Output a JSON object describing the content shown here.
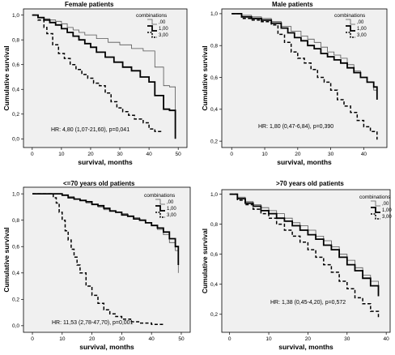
{
  "legend": {
    "title": "combinations",
    "entries": [
      {
        "label": ",00",
        "color": "#555555",
        "stroke_width": 0.8,
        "dash": "none"
      },
      {
        "label": "1,00",
        "color": "#000000",
        "stroke_width": 1.8,
        "dash": "none"
      },
      {
        "label": "3,00",
        "color": "#000000",
        "stroke_width": 1.5,
        "dash": "4,2.5"
      }
    ]
  },
  "chart_data": [
    {
      "type": "line",
      "title": "Female patients",
      "xlabel": "survival, months",
      "ylabel": "Cumulative survival",
      "xlim": [
        -3,
        53
      ],
      "ylim": [
        -0.07,
        1.05
      ],
      "xticks": [
        0,
        10,
        20,
        30,
        40,
        50
      ],
      "yticks": [
        0.0,
        0.2,
        0.4,
        0.6,
        0.8,
        1.0
      ],
      "ytick_labels": [
        "0,0",
        "0,2",
        "0,4",
        "0,6",
        "0,8",
        "1,0"
      ],
      "annotation": "HR: 4,80 (1,07-21,60), p=0,041",
      "series": [
        {
          "name": ",00",
          "x": [
            0,
            2,
            4,
            6,
            8,
            10,
            12,
            14,
            16,
            18,
            22,
            26,
            30,
            34,
            38,
            42,
            45,
            47,
            49
          ],
          "y": [
            1.0,
            0.98,
            0.97,
            0.96,
            0.95,
            0.93,
            0.9,
            0.88,
            0.86,
            0.84,
            0.81,
            0.78,
            0.76,
            0.73,
            0.71,
            0.58,
            0.43,
            0.42,
            0.05
          ]
        },
        {
          "name": "1,00",
          "x": [
            0,
            2,
            4,
            6,
            8,
            10,
            12,
            14,
            16,
            18,
            20,
            22,
            25,
            28,
            31,
            34,
            37,
            40,
            42,
            45,
            47,
            49
          ],
          "y": [
            1.0,
            0.98,
            0.96,
            0.94,
            0.92,
            0.89,
            0.86,
            0.83,
            0.8,
            0.77,
            0.74,
            0.7,
            0.66,
            0.62,
            0.58,
            0.55,
            0.5,
            0.46,
            0.35,
            0.24,
            0.23,
            0.0
          ]
        },
        {
          "name": "3,00",
          "x": [
            0,
            2,
            4,
            5,
            7,
            9,
            11,
            13,
            15,
            17,
            19,
            21,
            23,
            25,
            27,
            29,
            31,
            33,
            35,
            38,
            40,
            42,
            44
          ],
          "y": [
            1.0,
            0.96,
            0.9,
            0.85,
            0.76,
            0.69,
            0.65,
            0.6,
            0.56,
            0.52,
            0.49,
            0.45,
            0.43,
            0.37,
            0.3,
            0.25,
            0.22,
            0.19,
            0.16,
            0.13,
            0.08,
            0.06,
            0.05
          ]
        }
      ]
    },
    {
      "type": "line",
      "title": "Male patients",
      "xlabel": "survival, months",
      "ylabel": "Cumulative survival",
      "xlim": [
        -3,
        47
      ],
      "ylim": [
        0.16,
        1.03
      ],
      "xticks": [
        0,
        10,
        20,
        30,
        40
      ],
      "yticks": [
        0.2,
        0.4,
        0.6,
        0.8,
        1.0
      ],
      "ytick_labels": [
        "0,2",
        "0,4",
        "0,6",
        "0,8",
        "1,0"
      ],
      "annotation": "HR: 1,80 (0,47-6,84), p=0,390",
      "series": [
        {
          "name": ",00",
          "x": [
            0,
            3,
            6,
            9,
            12,
            15,
            18,
            21,
            23,
            25,
            27,
            29,
            31,
            33,
            35,
            37,
            39,
            41,
            43,
            44
          ],
          "y": [
            1.0,
            0.99,
            0.98,
            0.97,
            0.95,
            0.92,
            0.89,
            0.86,
            0.84,
            0.82,
            0.79,
            0.76,
            0.74,
            0.72,
            0.68,
            0.64,
            0.6,
            0.57,
            0.52,
            0.48
          ]
        },
        {
          "name": "1,00",
          "x": [
            0,
            3,
            6,
            9,
            12,
            15,
            17,
            19,
            21,
            23,
            25,
            27,
            29,
            31,
            33,
            35,
            37,
            39,
            41,
            43,
            44
          ],
          "y": [
            1.0,
            0.98,
            0.97,
            0.96,
            0.94,
            0.91,
            0.88,
            0.85,
            0.83,
            0.8,
            0.78,
            0.75,
            0.73,
            0.71,
            0.69,
            0.66,
            0.63,
            0.6,
            0.57,
            0.54,
            0.46
          ]
        },
        {
          "name": "3,00",
          "x": [
            0,
            3,
            6,
            9,
            12,
            14,
            16,
            18,
            20,
            22,
            24,
            26,
            28,
            30,
            32,
            34,
            36,
            38,
            40,
            42,
            44
          ],
          "y": [
            1.0,
            0.97,
            0.96,
            0.95,
            0.93,
            0.87,
            0.82,
            0.76,
            0.72,
            0.69,
            0.65,
            0.6,
            0.57,
            0.52,
            0.46,
            0.42,
            0.38,
            0.33,
            0.29,
            0.26,
            0.21
          ]
        }
      ]
    },
    {
      "type": "line",
      "title": "<=70 years old patients",
      "xlabel": "survival, months",
      "ylabel": "Cumulative survival",
      "xlim": [
        -3,
        53
      ],
      "ylim": [
        -0.05,
        1.05
      ],
      "xticks": [
        0,
        10,
        20,
        30,
        40,
        50
      ],
      "yticks": [
        0.0,
        0.2,
        0.4,
        0.6,
        0.8,
        1.0
      ],
      "ytick_labels": [
        "0,0",
        "0,2",
        "0,4",
        "0,6",
        "0,8",
        "1,0"
      ],
      "annotation": "HR: 11,53 (2,78-47,70), p=0,001",
      "series": [
        {
          "name": ",00",
          "x": [
            0,
            8,
            10,
            12,
            14,
            16,
            18,
            20,
            22,
            24,
            26,
            28,
            30,
            32,
            34,
            36,
            38,
            40,
            42,
            44,
            46,
            48,
            49
          ],
          "y": [
            1.0,
            1.0,
            0.99,
            0.98,
            0.96,
            0.95,
            0.93,
            0.92,
            0.9,
            0.88,
            0.87,
            0.86,
            0.85,
            0.83,
            0.82,
            0.8,
            0.78,
            0.76,
            0.73,
            0.69,
            0.63,
            0.57,
            0.4
          ]
        },
        {
          "name": "1,00",
          "x": [
            0,
            8,
            10,
            12,
            14,
            16,
            18,
            20,
            22,
            24,
            26,
            28,
            30,
            32,
            34,
            36,
            38,
            40,
            42,
            44,
            46,
            48,
            49
          ],
          "y": [
            1.0,
            1.0,
            0.99,
            0.97,
            0.96,
            0.95,
            0.94,
            0.92,
            0.91,
            0.89,
            0.87,
            0.86,
            0.84,
            0.83,
            0.81,
            0.8,
            0.78,
            0.76,
            0.74,
            0.71,
            0.66,
            0.6,
            0.46
          ]
        },
        {
          "name": "3,00",
          "x": [
            0,
            6,
            7,
            8,
            9,
            10,
            11,
            12,
            13,
            14,
            15,
            16,
            18,
            20,
            22,
            24,
            26,
            28,
            30,
            33,
            36,
            40,
            44
          ],
          "y": [
            1.0,
            1.0,
            0.97,
            0.93,
            0.86,
            0.8,
            0.72,
            0.65,
            0.58,
            0.52,
            0.46,
            0.4,
            0.3,
            0.23,
            0.17,
            0.12,
            0.09,
            0.07,
            0.05,
            0.03,
            0.02,
            0.01,
            0.0
          ]
        }
      ]
    },
    {
      "type": "line",
      "title": ">70 years old patients",
      "xlabel": "survival, months",
      "ylabel": "Cumulative survival",
      "xlim": [
        -2,
        41
      ],
      "ylim": [
        0.08,
        1.03
      ],
      "xticks": [
        0,
        10,
        20,
        30,
        40
      ],
      "yticks": [
        0.2,
        0.4,
        0.6,
        0.8,
        1.0
      ],
      "ytick_labels": [
        "0,2",
        "0,4",
        "0,6",
        "0,8",
        "1,0"
      ],
      "annotation": "HR: 1,38 (0,45-4,20), p=0,572",
      "series": [
        {
          "name": ",00",
          "x": [
            0,
            2,
            4,
            6,
            8,
            10,
            12,
            14,
            16,
            18,
            20,
            22,
            24,
            26,
            28,
            30,
            32,
            34,
            36,
            38
          ],
          "y": [
            1.0,
            0.98,
            0.95,
            0.93,
            0.91,
            0.89,
            0.87,
            0.84,
            0.81,
            0.79,
            0.76,
            0.72,
            0.69,
            0.65,
            0.6,
            0.56,
            0.51,
            0.46,
            0.42,
            0.35
          ]
        },
        {
          "name": "1,00",
          "x": [
            0,
            2,
            4,
            6,
            8,
            10,
            12,
            14,
            16,
            18,
            20,
            22,
            24,
            26,
            28,
            30,
            32,
            34,
            36,
            38
          ],
          "y": [
            1.0,
            0.97,
            0.94,
            0.92,
            0.89,
            0.87,
            0.84,
            0.82,
            0.79,
            0.76,
            0.73,
            0.7,
            0.66,
            0.63,
            0.58,
            0.53,
            0.49,
            0.44,
            0.39,
            0.32
          ]
        },
        {
          "name": "3,00",
          "x": [
            0,
            2,
            4,
            6,
            8,
            10,
            12,
            14,
            16,
            18,
            20,
            22,
            24,
            26,
            28,
            30,
            32,
            34,
            36,
            38
          ],
          "y": [
            1.0,
            0.96,
            0.93,
            0.9,
            0.87,
            0.84,
            0.8,
            0.76,
            0.72,
            0.68,
            0.63,
            0.58,
            0.53,
            0.48,
            0.42,
            0.37,
            0.31,
            0.27,
            0.22,
            0.17
          ]
        }
      ]
    }
  ]
}
